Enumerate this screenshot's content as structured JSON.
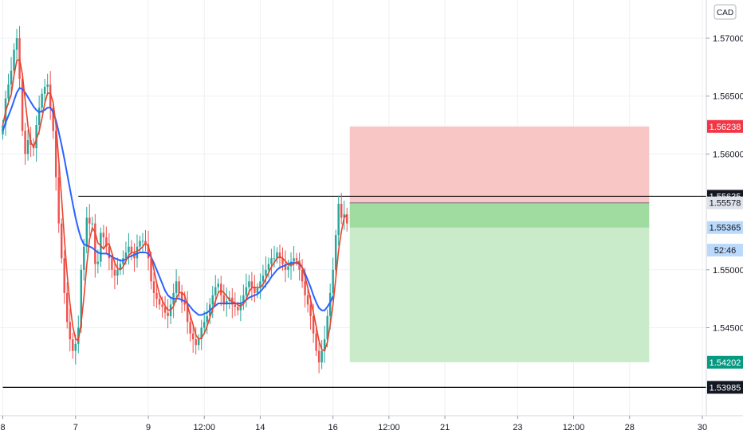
{
  "chart_data": {
    "type": "candlestick",
    "currency": "CAD",
    "y_range": [
      1.5374,
      1.5733
    ],
    "y_ticks": [
      "1.57000",
      "1.56500",
      "1.56000",
      "1.55000",
      "1.54500"
    ],
    "x_labels": [
      {
        "label": "8",
        "i": 0
      },
      {
        "label": "7",
        "i": 26
      },
      {
        "label": "9",
        "i": 52
      },
      {
        "label": "12:00",
        "i": 72
      },
      {
        "label": "14",
        "i": 92
      },
      {
        "label": "16",
        "i": 118
      },
      {
        "label": "12:00",
        "i": 138
      },
      {
        "label": "21",
        "i": 158
      },
      {
        "label": "23",
        "i": 184
      },
      {
        "label": "12:00",
        "i": 204
      },
      {
        "label": "28",
        "i": 224
      },
      {
        "label": "30",
        "i": 250
      }
    ],
    "total_slots": 252,
    "grid": true,
    "price_tags": [
      {
        "value": "1.56238",
        "bg": "#f23645",
        "fg": "#ffffff",
        "price": 1.56238
      },
      {
        "value": "1.55635",
        "bg": "#131722",
        "fg": "#ffffff",
        "price": 1.55635
      },
      {
        "value": "1.55578",
        "bg": "#e0e3eb",
        "fg": "#131722",
        "price": 1.55578
      },
      {
        "value": "1.55365",
        "bg": "#bbd9fb",
        "fg": "#131722",
        "price": 1.55365
      },
      {
        "value": "52:46",
        "bg": "#bbd9fb",
        "fg": "#131722",
        "price": 1.5517
      },
      {
        "value": "1.54202",
        "bg": "#089981",
        "fg": "#ffffff",
        "price": 1.54202
      },
      {
        "value": "1.53985",
        "bg": "#131722",
        "fg": "#ffffff",
        "price": 1.53985
      }
    ],
    "horizontal_lines": [
      {
        "price": 1.55635,
        "from_i": 27,
        "color": "#000000"
      },
      {
        "price": 1.53985,
        "from_i": 0,
        "color": "#000000"
      }
    ],
    "position": {
      "from_i": 124,
      "to_i": 231,
      "entry": 1.55578,
      "stop": 1.56238,
      "target": 1.54202,
      "current": 1.55365,
      "loss_color": "#f9c6c6",
      "profit_color": "#c9ebc9",
      "current_profit_color": "#a0dba0"
    },
    "series": [
      {
        "name": "",
        "type": "candles",
        "up_color": "#26a69a",
        "down_color": "#ef5350",
        "closes": [
          1.5625,
          1.5648,
          1.566,
          1.5672,
          1.569,
          1.57,
          1.5665,
          1.562,
          1.56,
          1.5612,
          1.5608,
          1.5605,
          1.5625,
          1.564,
          1.5652,
          1.5658,
          1.566,
          1.564,
          1.562,
          1.558,
          1.554,
          1.551,
          1.548,
          1.5455,
          1.544,
          1.543,
          1.5436,
          1.545,
          1.55,
          1.552,
          1.5545,
          1.554,
          1.554,
          1.5505,
          1.5507,
          1.5532,
          1.5528,
          1.552,
          1.551,
          1.55,
          1.5495,
          1.55,
          1.5505,
          1.551,
          1.5515,
          1.552,
          1.5515,
          1.551,
          1.552,
          1.5525,
          1.5525,
          1.5522,
          1.551,
          1.549,
          1.548,
          1.5475,
          1.547,
          1.5468,
          1.5463,
          1.546,
          1.547,
          1.548,
          1.549,
          1.548,
          1.5472,
          1.547,
          1.5455,
          1.5445,
          1.544,
          1.5435,
          1.544,
          1.545,
          1.5455,
          1.546,
          1.547,
          1.5478,
          1.5485,
          1.5488,
          1.5478,
          1.547,
          1.5473,
          1.5476,
          1.547,
          1.5468,
          1.5465,
          1.5471,
          1.5478,
          1.5485,
          1.549,
          1.5485,
          1.548,
          1.5484,
          1.549,
          1.5495,
          1.55,
          1.5505,
          1.551,
          1.551,
          1.5515,
          1.551,
          1.5505,
          1.55,
          1.5503,
          1.5507,
          1.551,
          1.5508,
          1.55,
          1.549,
          1.5478,
          1.547,
          1.546,
          1.5445,
          1.543,
          1.542,
          1.543,
          1.544,
          1.546,
          1.548,
          1.55,
          1.553,
          1.5557,
          1.5545,
          1.5548,
          1.554
        ]
      },
      {
        "name": "",
        "type": "line",
        "color": "#2962ff",
        "values": [
          1.562,
          1.5627,
          1.5633,
          1.5639,
          1.5646,
          1.5653,
          1.5657,
          1.5656,
          1.5653,
          1.5649,
          1.5645,
          1.5641,
          1.5638,
          1.5636,
          1.5637,
          1.5638,
          1.564,
          1.564,
          1.5636,
          1.5629,
          1.5619,
          1.5608,
          1.5596,
          1.5583,
          1.557,
          1.5557,
          1.5545,
          1.5535,
          1.5527,
          1.5522,
          1.5521,
          1.552,
          1.5519,
          1.5517,
          1.5515,
          1.5514,
          1.5514,
          1.5514,
          1.5513,
          1.5511,
          1.551,
          1.5509,
          1.5508,
          1.5508,
          1.5509,
          1.5511,
          1.5512,
          1.5513,
          1.5514,
          1.5515,
          1.5515,
          1.5515,
          1.5514,
          1.5511,
          1.5506,
          1.55,
          1.5494,
          1.5488,
          1.5482,
          1.5478,
          1.5476,
          1.5475,
          1.5475,
          1.5475,
          1.5474,
          1.5473,
          1.5471,
          1.5468,
          1.5465,
          1.5463,
          1.5461,
          1.5461,
          1.5462,
          1.5463,
          1.5465,
          1.5467,
          1.5469,
          1.5471,
          1.5471,
          1.5471,
          1.5471,
          1.5471,
          1.5471,
          1.5471,
          1.5471,
          1.5471,
          1.5472,
          1.5474,
          1.5476,
          1.5477,
          1.5478,
          1.5479,
          1.5481,
          1.5484,
          1.5487,
          1.549,
          1.5494,
          1.5497,
          1.55,
          1.5502,
          1.5503,
          1.5504,
          1.5505,
          1.5506,
          1.5506,
          1.5506,
          1.5505,
          1.5502,
          1.5497,
          1.5491,
          1.5485,
          1.5478,
          1.5472,
          1.5467,
          1.5465,
          1.5465,
          1.5468,
          1.5472,
          1.5477
        ]
      }
    ]
  }
}
